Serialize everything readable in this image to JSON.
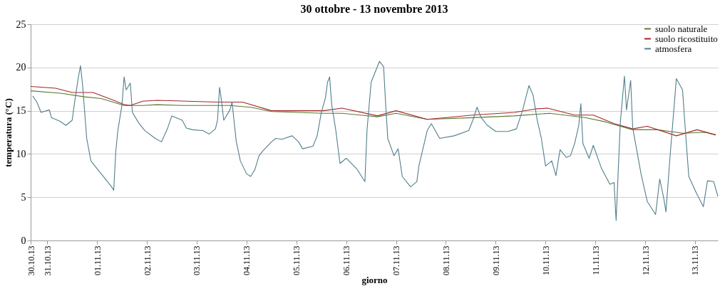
{
  "chart_data": {
    "type": "line",
    "title": "30 ottobre - 13 novembre 2013",
    "xlabel": "giorno",
    "ylabel": "temperatura (°C)",
    "xlim": [
      "2013-10-30T16:00",
      "2013-11-13T11:00"
    ],
    "ylim": [
      0,
      25
    ],
    "yticks": [
      0,
      5,
      10,
      15,
      20,
      25
    ],
    "xticks": [
      {
        "value": "2013-10-30T16:00",
        "label": "30.10.13"
      },
      {
        "value": "2013-10-31",
        "label": "31.10.13"
      },
      {
        "value": "2013-11-01",
        "label": "01.11.13"
      },
      {
        "value": "2013-11-02",
        "label": "02.11.13"
      },
      {
        "value": "2013-11-03",
        "label": "03.11.13"
      },
      {
        "value": "2013-11-04",
        "label": "04.11.13"
      },
      {
        "value": "2013-11-05",
        "label": "05.11.13"
      },
      {
        "value": "2013-11-06",
        "label": "06.11.13"
      },
      {
        "value": "2013-11-07",
        "label": "07.11.13"
      },
      {
        "value": "2013-11-08",
        "label": "08.11.13"
      },
      {
        "value": "2013-11-09",
        "label": "09.11.13"
      },
      {
        "value": "2013-11-10",
        "label": "10.11.13"
      },
      {
        "value": "2013-11-11",
        "label": "11.11.13"
      },
      {
        "value": "2013-11-12",
        "label": "12.11.13"
      },
      {
        "value": "2013-11-13",
        "label": "13.11.13"
      }
    ],
    "grid": "y",
    "legend": "top right",
    "marker": "none",
    "line_style": "solid",
    "series": [
      {
        "name": "suolo naturale",
        "color": "#5a7a2e",
        "x": [
          "2013-10-30T16:00",
          "2013-10-31T07:00",
          "2013-10-31T18:00",
          "2013-11-01T02:00",
          "2013-11-01T13:00",
          "2013-11-01T22:00",
          "2013-11-02T05:00",
          "2013-11-02T17:00",
          "2013-11-03T16:00",
          "2013-11-04T02:00",
          "2013-11-04T12:00",
          "2013-11-05T13:00",
          "2013-11-05T22:00",
          "2013-11-06T15:00",
          "2013-11-07T00:00",
          "2013-11-07T15:00",
          "2013-11-08T13:00",
          "2013-11-09T09:00",
          "2013-11-10T02:00",
          "2013-11-10T19:00",
          "2013-11-11T05:00",
          "2013-11-11T18:00",
          "2013-11-12T06:00",
          "2013-11-12T18:00",
          "2013-11-13T05:00",
          "2013-11-13T10:00"
        ],
        "values": [
          17.3,
          17.0,
          16.6,
          16.4,
          15.6,
          15.6,
          15.7,
          15.6,
          15.6,
          15.4,
          14.9,
          14.7,
          14.7,
          14.3,
          14.7,
          14.0,
          14.2,
          14.4,
          14.7,
          14.2,
          13.7,
          12.8,
          12.8,
          12.4,
          12.5,
          12.2
        ]
      },
      {
        "name": "suolo ricostituito",
        "color": "#a3262a",
        "x": [
          "2013-10-30T16:00",
          "2013-10-31T04:00",
          "2013-10-31T12:00",
          "2013-10-31T22:00",
          "2013-11-01T08:00",
          "2013-11-01T13:00",
          "2013-11-01T16:00",
          "2013-11-01T22:00",
          "2013-11-02T05:00",
          "2013-11-03T10:00",
          "2013-11-03T15:00",
          "2013-11-03T22:00",
          "2013-11-04T12:00",
          "2013-11-05T13:00",
          "2013-11-05T22:00",
          "2013-11-06T15:00",
          "2013-11-07T00:00",
          "2013-11-07T15:00",
          "2013-11-08T13:00",
          "2013-11-09T09:00",
          "2013-11-09T19:00",
          "2013-11-10T01:00",
          "2013-11-10T14:00",
          "2013-11-10T23:00",
          "2013-11-11T09:00",
          "2013-11-11T18:00",
          "2013-11-12T01:00",
          "2013-11-12T15:00",
          "2013-11-13T01:00",
          "2013-11-13T10:00"
        ],
        "values": [
          17.8,
          17.6,
          17.1,
          17.1,
          16.2,
          15.7,
          15.6,
          16.1,
          16.2,
          16.0,
          16.0,
          16.0,
          15.0,
          15.0,
          15.3,
          14.4,
          15.0,
          14.0,
          14.5,
          14.8,
          15.2,
          15.3,
          14.5,
          14.5,
          13.5,
          12.9,
          13.2,
          12.1,
          12.8,
          12.2
        ]
      },
      {
        "name": "atmosfera",
        "color": "#527e8c",
        "x": [
          "2013-10-30T17:00",
          "2013-10-30T19:00",
          "2013-10-30T21:00",
          "2013-10-31T01:00",
          "2013-10-31T02:00",
          "2013-10-31T06:00",
          "2013-10-31T09:00",
          "2013-10-31T12:00",
          "2013-10-31T13:00",
          "2013-10-31T15:00",
          "2013-10-31T16:00",
          "2013-10-31T17:00",
          "2013-10-31T19:00",
          "2013-10-31T21:00",
          "2013-11-01T02:00",
          "2013-11-01T07:00",
          "2013-11-01T08:00",
          "2013-11-01T09:00",
          "2013-11-01T10:00",
          "2013-11-01T12:00",
          "2013-11-01T13:00",
          "2013-11-01T14:00",
          "2013-11-01T16:00",
          "2013-11-01T17:00",
          "2013-11-01T20:00",
          "2013-11-01T23:00",
          "2013-11-02T04:00",
          "2013-11-02T07:00",
          "2013-11-02T10:00",
          "2013-11-02T12:00",
          "2013-11-02T17:00",
          "2013-11-02T19:00",
          "2013-11-02T22:00",
          "2013-11-03T03:00",
          "2013-11-03T06:00",
          "2013-11-03T09:00",
          "2013-11-03T10:00",
          "2013-11-03T11:00",
          "2013-11-03T12:00",
          "2013-11-03T13:00",
          "2013-11-03T16:00",
          "2013-11-03T17:00",
          "2013-11-03T19:00",
          "2013-11-03T21:00",
          "2013-11-04T00:00",
          "2013-11-04T02:00",
          "2013-11-04T04:00",
          "2013-11-04T06:00",
          "2013-11-04T08:00",
          "2013-11-04T12:00",
          "2013-11-04T14:00",
          "2013-11-04T17:00",
          "2013-11-04T22:00",
          "2013-11-05T01:00",
          "2013-11-05T03:00",
          "2013-11-05T08:00",
          "2013-11-05T10:00",
          "2013-11-05T12:00",
          "2013-11-05T14:00",
          "2013-11-05T15:00",
          "2013-11-05T16:00",
          "2013-11-05T17:00",
          "2013-11-05T19:00",
          "2013-11-05T21:00",
          "2013-11-06T00:00",
          "2013-11-06T05:00",
          "2013-11-06T09:00",
          "2013-11-06T10:00",
          "2013-11-06T12:00",
          "2013-11-06T13:00",
          "2013-11-06T16:00",
          "2013-11-06T18:00",
          "2013-11-06T19:00",
          "2013-11-06T20:00",
          "2013-11-06T23:00",
          "2013-11-07T01:00",
          "2013-11-07T03:00",
          "2013-11-07T07:00",
          "2013-11-07T10:00",
          "2013-11-07T11:00",
          "2013-11-07T15:00",
          "2013-11-07T17:00",
          "2013-11-07T21:00",
          "2013-11-08T04:00",
          "2013-11-08T11:00",
          "2013-11-08T13:00",
          "2013-11-08T15:00",
          "2013-11-08T17:00",
          "2013-11-08T20:00",
          "2013-11-09T00:00",
          "2013-11-09T06:00",
          "2013-11-09T10:00",
          "2013-11-09T13:00",
          "2013-11-09T16:00",
          "2013-11-09T18:00",
          "2013-11-09T20:00",
          "2013-11-09T22:00",
          "2013-11-10T00:00",
          "2013-11-10T03:00",
          "2013-11-10T05:00",
          "2013-11-10T07:00",
          "2013-11-10T10:00",
          "2013-11-10T12:00",
          "2013-11-10T14:00",
          "2013-11-10T16:00",
          "2013-11-10T17:00",
          "2013-11-10T18:00",
          "2013-11-10T21:00",
          "2013-11-10T23:00",
          "2013-11-11T03:00",
          "2013-11-11T07:00",
          "2013-11-11T09:00",
          "2013-11-11T10:00",
          "2013-11-11T12:00",
          "2013-11-11T14:00",
          "2013-11-11T15:00",
          "2013-11-11T17:00",
          "2013-11-11T18:00",
          "2013-11-11T22:00",
          "2013-11-12T01:00",
          "2013-11-12T05:00",
          "2013-11-12T07:00",
          "2013-11-12T09:00",
          "2013-11-12T10:00",
          "2013-11-12T12:00",
          "2013-11-12T14:00",
          "2013-11-12T15:00",
          "2013-11-12T18:00",
          "2013-11-12T19:00",
          "2013-11-12T21:00",
          "2013-11-13T01:00",
          "2013-11-13T04:00",
          "2013-11-13T06:00",
          "2013-11-13T09:00",
          "2013-11-13T11:00"
        ],
        "values": [
          16.7,
          16.0,
          14.8,
          15.1,
          14.2,
          13.8,
          13.3,
          13.9,
          15.7,
          18.9,
          20.2,
          18.0,
          11.8,
          9.2,
          7.7,
          6.2,
          5.8,
          10.3,
          12.7,
          15.7,
          18.9,
          17.4,
          18.2,
          14.8,
          13.6,
          12.7,
          11.8,
          11.4,
          13.0,
          14.4,
          13.9,
          13.0,
          12.8,
          12.7,
          12.3,
          12.9,
          13.9,
          17.7,
          16.0,
          13.9,
          15.1,
          16.0,
          11.5,
          9.2,
          7.7,
          7.4,
          8.2,
          9.8,
          10.4,
          11.4,
          11.8,
          11.7,
          12.1,
          11.4,
          10.6,
          10.9,
          12.1,
          14.8,
          16.5,
          18.3,
          18.9,
          15.7,
          12.7,
          8.9,
          9.5,
          8.3,
          6.8,
          12.7,
          18.3,
          18.9,
          20.7,
          20.1,
          15.7,
          11.8,
          9.8,
          10.6,
          7.4,
          6.2,
          6.8,
          8.6,
          12.7,
          13.5,
          11.8,
          12.1,
          12.7,
          13.9,
          15.4,
          14.2,
          13.3,
          12.6,
          12.6,
          12.9,
          15.1,
          17.9,
          16.8,
          13.9,
          11.8,
          8.6,
          9.2,
          7.5,
          10.5,
          9.6,
          9.8,
          11.2,
          13.3,
          15.8,
          11.2,
          9.5,
          11.0,
          8.3,
          6.5,
          6.7,
          2.3,
          13.6,
          19.0,
          15.1,
          18.5,
          13.0,
          7.7,
          4.5,
          3.0,
          7.1,
          4.8,
          3.3,
          9.8,
          15.7,
          18.7,
          17.4,
          13.9,
          7.4,
          5.3,
          3.9,
          6.9,
          6.8,
          5.1
        ]
      }
    ]
  }
}
